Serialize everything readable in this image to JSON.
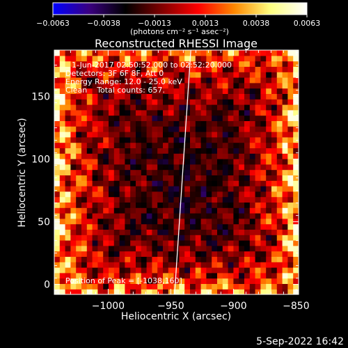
{
  "chart_data": {
    "type": "heatmap",
    "title": "Reconstructed RHESSI Image",
    "xlabel": "Heliocentric X (arcsec)",
    "ylabel": "Heliocentric Y (arcsec)",
    "xlim": [
      -1043,
      -848
    ],
    "ylim": [
      -8,
      187
    ],
    "x_ticks": [
      {
        "value": -1000,
        "label": "−1000"
      },
      {
        "value": -950,
        "label": "−950"
      },
      {
        "value": -900,
        "label": "−900"
      },
      {
        "value": -850,
        "label": "−850"
      }
    ],
    "y_ticks": [
      {
        "value": 0,
        "label": "0"
      },
      {
        "value": 50,
        "label": "50"
      },
      {
        "value": 100,
        "label": "100"
      },
      {
        "value": 150,
        "label": "150"
      }
    ],
    "colorbar": {
      "range": [
        -0.0063,
        0.0063
      ],
      "ticks": [
        "−0.0063",
        "−0.0038",
        "−0.0013",
        "0.0013",
        "0.0038",
        "0.0063"
      ],
      "unit_label": "(photons cm⁻² s⁻¹ asec⁻²)",
      "colors": [
        "#0000ff",
        "#3a0080",
        "#000000",
        "#800000",
        "#ff0000",
        "#ff8800",
        "#ffff80",
        "#ffffff"
      ]
    },
    "annotations": [
      "1-Jun-2017 02:50:52.000 to 02:52:20.000",
      "Detectors: 3F 6F 8F, Att 0",
      "Energy Range: 12.0 - 25.0 keV",
      "Clean    Total counts: 657.",
      "Position of Peak = [-1038,160]"
    ],
    "limb_line": {
      "x": [
        -947,
        -934
      ],
      "y": [
        -8,
        187
      ]
    },
    "peak": {
      "x": -1038,
      "y": 160
    }
  },
  "footer": {
    "date": "5-Sep-2022 16:42"
  }
}
